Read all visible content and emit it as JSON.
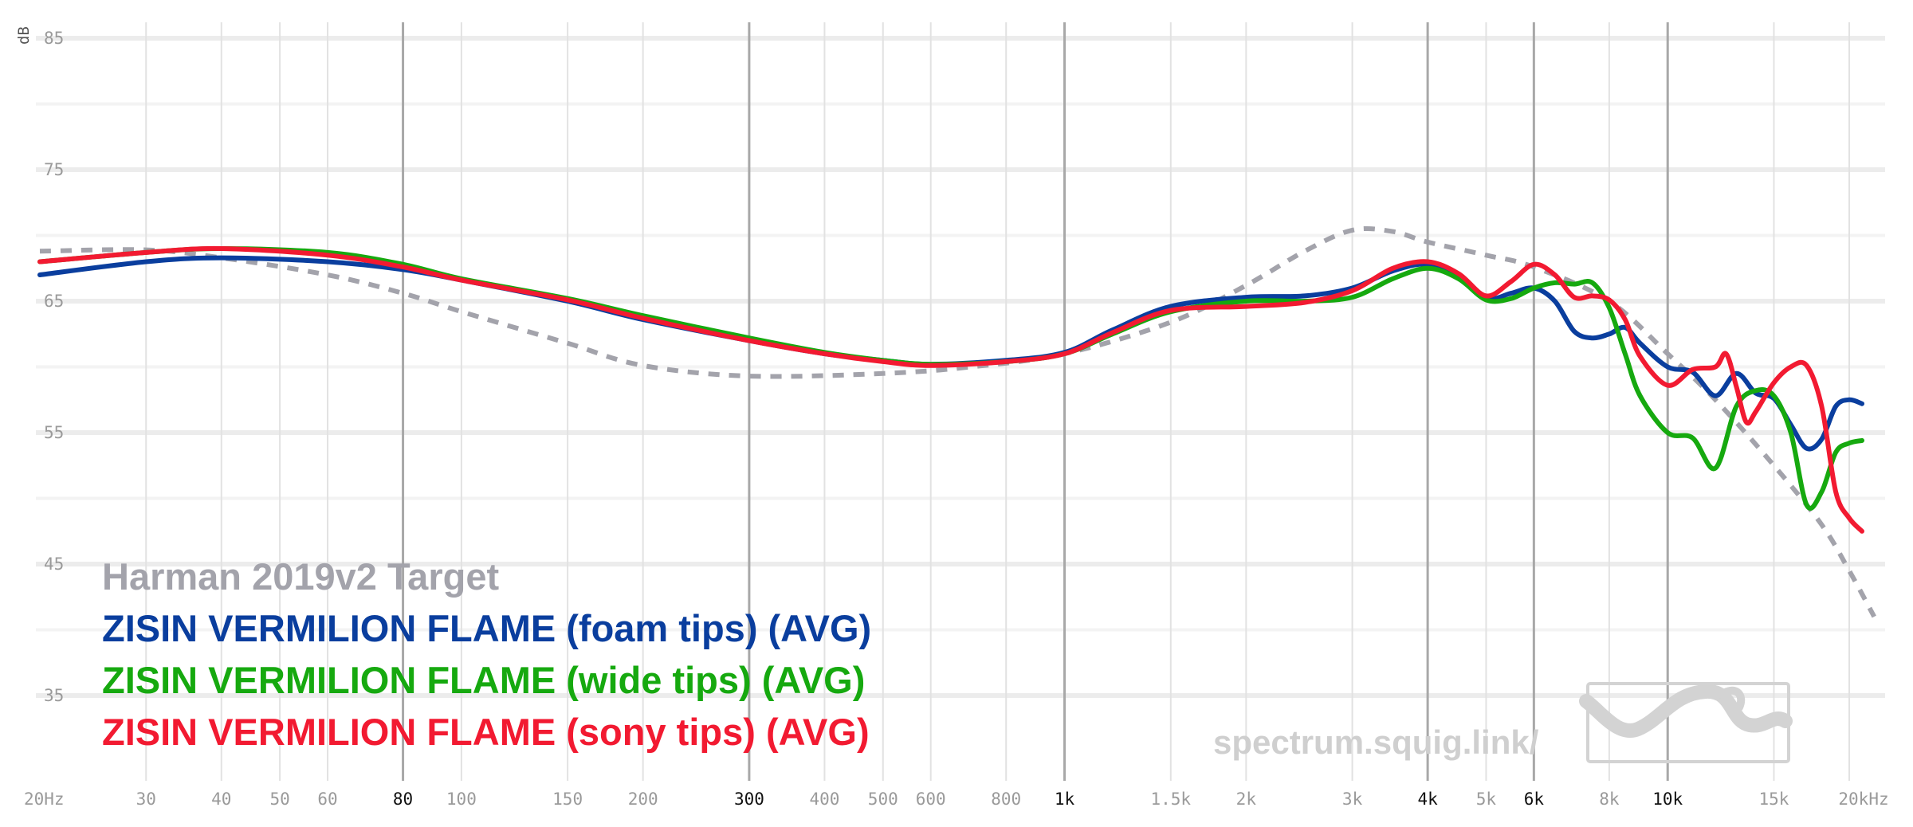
{
  "chart_data": {
    "type": "line",
    "ylabel": "dB",
    "ylim": [
      31,
      87
    ],
    "xlim": [
      20,
      22000
    ],
    "x_scale": "log",
    "y_ticks": [
      85,
      75,
      65,
      55,
      45,
      35
    ],
    "x_ticks": [
      {
        "value": 20,
        "label": "20Hz",
        "major": false
      },
      {
        "value": 30,
        "label": "30",
        "major": false
      },
      {
        "value": 40,
        "label": "40",
        "major": false
      },
      {
        "value": 50,
        "label": "50",
        "major": false
      },
      {
        "value": 60,
        "label": "60",
        "major": false
      },
      {
        "value": 80,
        "label": "80",
        "major": true
      },
      {
        "value": 100,
        "label": "100",
        "major": false
      },
      {
        "value": 150,
        "label": "150",
        "major": false
      },
      {
        "value": 200,
        "label": "200",
        "major": false
      },
      {
        "value": 300,
        "label": "300",
        "major": true
      },
      {
        "value": 400,
        "label": "400",
        "major": false
      },
      {
        "value": 500,
        "label": "500",
        "major": false
      },
      {
        "value": 600,
        "label": "600",
        "major": false
      },
      {
        "value": 800,
        "label": "800",
        "major": false
      },
      {
        "value": 1000,
        "label": "1k",
        "major": true
      },
      {
        "value": 1500,
        "label": "1.5k",
        "major": false
      },
      {
        "value": 2000,
        "label": "2k",
        "major": false
      },
      {
        "value": 3000,
        "label": "3k",
        "major": false
      },
      {
        "value": 4000,
        "label": "4k",
        "major": true
      },
      {
        "value": 5000,
        "label": "5k",
        "major": false
      },
      {
        "value": 6000,
        "label": "6k",
        "major": true
      },
      {
        "value": 8000,
        "label": "8k",
        "major": false
      },
      {
        "value": 10000,
        "label": "10k",
        "major": true
      },
      {
        "value": 15000,
        "label": "15k",
        "major": false
      },
      {
        "value": 20000,
        "label": "20kHz",
        "major": false
      }
    ],
    "grid": true,
    "legend_position": "bottom-left",
    "series": [
      {
        "name": "Harman 2019v2 Target",
        "color": "#a3a3ab",
        "dashed": true,
        "points": [
          [
            20,
            68.8
          ],
          [
            30,
            68.9
          ],
          [
            40,
            68.3
          ],
          [
            60,
            67.0
          ],
          [
            80,
            65.6
          ],
          [
            100,
            64.2
          ],
          [
            150,
            61.8
          ],
          [
            200,
            60.1
          ],
          [
            300,
            59.3
          ],
          [
            500,
            59.5
          ],
          [
            700,
            60.0
          ],
          [
            1000,
            61.0
          ],
          [
            1500,
            63.4
          ],
          [
            2000,
            66.2
          ],
          [
            2500,
            68.8
          ],
          [
            3000,
            70.4
          ],
          [
            3500,
            70.3
          ],
          [
            4000,
            69.5
          ],
          [
            5000,
            68.5
          ],
          [
            6000,
            67.6
          ],
          [
            8000,
            65.0
          ],
          [
            10000,
            61.0
          ],
          [
            12000,
            57.5
          ],
          [
            15000,
            52.5
          ],
          [
            18000,
            48.0
          ],
          [
            20000,
            44.5
          ],
          [
            22000,
            41.0
          ]
        ]
      },
      {
        "name": "ZISIN VERMILION FLAME (foam tips) (AVG)",
        "color": "#0a3e9e",
        "dashed": false,
        "points": [
          [
            20,
            67.0
          ],
          [
            30,
            68.0
          ],
          [
            40,
            68.3
          ],
          [
            60,
            68.0
          ],
          [
            80,
            67.4
          ],
          [
            100,
            66.6
          ],
          [
            150,
            65.0
          ],
          [
            200,
            63.6
          ],
          [
            300,
            62.0
          ],
          [
            400,
            61.0
          ],
          [
            500,
            60.5
          ],
          [
            600,
            60.2
          ],
          [
            800,
            60.5
          ],
          [
            1000,
            61.1
          ],
          [
            1200,
            62.8
          ],
          [
            1500,
            64.6
          ],
          [
            2000,
            65.3
          ],
          [
            2500,
            65.4
          ],
          [
            3000,
            66.0
          ],
          [
            3500,
            67.3
          ],
          [
            4000,
            67.8
          ],
          [
            4500,
            66.8
          ],
          [
            5000,
            65.2
          ],
          [
            5500,
            65.6
          ],
          [
            6000,
            66.0
          ],
          [
            6500,
            65.0
          ],
          [
            7000,
            62.7
          ],
          [
            7500,
            62.2
          ],
          [
            8000,
            62.5
          ],
          [
            8500,
            63.0
          ],
          [
            9000,
            61.8
          ],
          [
            10000,
            60.0
          ],
          [
            11000,
            59.6
          ],
          [
            12000,
            57.8
          ],
          [
            13000,
            59.5
          ],
          [
            14000,
            58.0
          ],
          [
            15000,
            57.6
          ],
          [
            16000,
            55.6
          ],
          [
            17000,
            53.8
          ],
          [
            18000,
            54.5
          ],
          [
            19000,
            57.0
          ],
          [
            20000,
            57.5
          ],
          [
            21000,
            57.2
          ]
        ]
      },
      {
        "name": "ZISIN VERMILION FLAME (wide tips) (AVG)",
        "color": "#16a90f",
        "dashed": false,
        "points": [
          [
            20,
            68.0
          ],
          [
            30,
            68.7
          ],
          [
            40,
            69.0
          ],
          [
            60,
            68.7
          ],
          [
            80,
            67.8
          ],
          [
            100,
            66.7
          ],
          [
            150,
            65.2
          ],
          [
            200,
            63.9
          ],
          [
            300,
            62.2
          ],
          [
            400,
            61.1
          ],
          [
            500,
            60.5
          ],
          [
            600,
            60.2
          ],
          [
            800,
            60.4
          ],
          [
            1000,
            61.0
          ],
          [
            1200,
            62.5
          ],
          [
            1500,
            64.2
          ],
          [
            2000,
            65.0
          ],
          [
            2500,
            65.0
          ],
          [
            3000,
            65.3
          ],
          [
            3500,
            66.7
          ],
          [
            4000,
            67.5
          ],
          [
            4500,
            66.7
          ],
          [
            5000,
            65.1
          ],
          [
            5500,
            65.2
          ],
          [
            6000,
            66.0
          ],
          [
            6500,
            66.4
          ],
          [
            7000,
            66.3
          ],
          [
            7500,
            66.4
          ],
          [
            8000,
            64.5
          ],
          [
            8500,
            61.0
          ],
          [
            9000,
            57.8
          ],
          [
            10000,
            55.0
          ],
          [
            11000,
            54.6
          ],
          [
            12000,
            52.3
          ],
          [
            13000,
            57.0
          ],
          [
            14000,
            58.2
          ],
          [
            15000,
            57.8
          ],
          [
            16000,
            55.0
          ],
          [
            17000,
            49.5
          ],
          [
            18000,
            50.5
          ],
          [
            19000,
            53.5
          ],
          [
            20000,
            54.2
          ],
          [
            21000,
            54.4
          ]
        ]
      },
      {
        "name": "ZISIN VERMILION FLAME (sony tips) (AVG)",
        "color": "#f21a31",
        "dashed": false,
        "points": [
          [
            20,
            68.0
          ],
          [
            30,
            68.7
          ],
          [
            40,
            69.0
          ],
          [
            60,
            68.5
          ],
          [
            80,
            67.6
          ],
          [
            100,
            66.6
          ],
          [
            150,
            65.1
          ],
          [
            200,
            63.7
          ],
          [
            300,
            62.0
          ],
          [
            400,
            61.0
          ],
          [
            500,
            60.4
          ],
          [
            600,
            60.1
          ],
          [
            800,
            60.4
          ],
          [
            1000,
            61.0
          ],
          [
            1200,
            62.6
          ],
          [
            1500,
            64.3
          ],
          [
            2000,
            64.6
          ],
          [
            2500,
            64.9
          ],
          [
            3000,
            65.8
          ],
          [
            3500,
            67.5
          ],
          [
            4000,
            68.0
          ],
          [
            4500,
            67.1
          ],
          [
            5000,
            65.4
          ],
          [
            5500,
            66.5
          ],
          [
            6000,
            67.8
          ],
          [
            6500,
            67.0
          ],
          [
            7000,
            65.3
          ],
          [
            7500,
            65.4
          ],
          [
            8000,
            65.1
          ],
          [
            8500,
            63.6
          ],
          [
            9000,
            60.8
          ],
          [
            10000,
            58.6
          ],
          [
            11000,
            59.8
          ],
          [
            12000,
            60.0
          ],
          [
            12500,
            61.0
          ],
          [
            13000,
            58.5
          ],
          [
            13500,
            55.8
          ],
          [
            14000,
            56.6
          ],
          [
            15000,
            58.8
          ],
          [
            16000,
            60.0
          ],
          [
            17000,
            60.1
          ],
          [
            18000,
            57.0
          ],
          [
            19000,
            50.5
          ],
          [
            20000,
            48.5
          ],
          [
            21000,
            47.5
          ]
        ]
      }
    ]
  },
  "watermark": {
    "text": "spectrum.squig.link/",
    "logo_name": "squig-logo"
  }
}
